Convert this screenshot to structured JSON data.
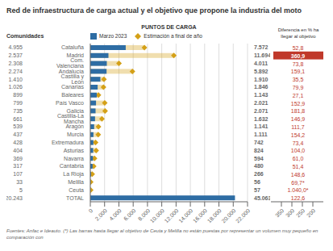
{
  "chart_data": {
    "type": "bar",
    "orientation": "horizontal",
    "title": "Red de infraestructura de carga actual y el objetivo que propone la industria del moto",
    "subtitle": "PUNTOS DE CARGA",
    "y_label": "Comunidades",
    "categories": [
      "Cataluña",
      "Madrid",
      "Com. Valenciana",
      "Andalucía",
      "Castilla y León",
      "Canarias",
      "Baleares",
      "País Vasco",
      "Galicia",
      "Castilla-La Mancha",
      "Aragón",
      "Murcia",
      "Extremadura",
      "Asturias",
      "Navarra",
      "Cantabria",
      "La Rioja",
      "Melilla",
      "Ceuta",
      "TOTAL"
    ],
    "series": [
      {
        "name": "Marzo 2023",
        "color": "#2E6DA4",
        "values": [
          4955,
          2537,
          2308,
          2274,
          1410,
          1026,
          899,
          799,
          735,
          661,
          539,
          437,
          428,
          404,
          369,
          317,
          107,
          33,
          5,
          20243
        ],
        "value_labels": [
          "4.955",
          "2.537",
          "2.308",
          "2.274",
          "1.410",
          "1.026",
          "899",
          "799",
          "735",
          "661",
          "539",
          "437",
          "428",
          "404",
          "369",
          "317",
          "107",
          "33",
          "5",
          "20.243"
        ]
      },
      {
        "name": "Estimación a final de año",
        "color": "#D4A017",
        "marker": "diamond",
        "values": [
          7572,
          11694,
          4011,
          5892,
          1910,
          1846,
          1143,
          2021,
          2071,
          1632,
          1141,
          1111,
          742,
          824,
          594,
          480,
          266,
          56,
          57,
          null
        ],
        "value_labels": [
          "7.572",
          "11.694",
          "4.011",
          "5.892",
          "1.910",
          "1.846",
          "1.143",
          "2.021",
          "2.071",
          "1.632",
          "1.141",
          "1.111",
          "742",
          "824",
          "594",
          "480",
          "266",
          "56",
          "57",
          null
        ]
      }
    ],
    "annotations": [
      {
        "category": "TOTAL",
        "text": "45.063"
      }
    ],
    "xlim": [
      0,
      22000
    ],
    "xticks": [
      0,
      {
        "value": 2000,
        "label": "2.000"
      },
      {
        "value": 4000,
        "label": "4.000"
      },
      {
        "value": 6000,
        "label": "6.000"
      },
      {
        "value": 8000,
        "label": "8.000"
      },
      {
        "value": 10000,
        "label": "10.000"
      },
      {
        "value": 12000,
        "label": "12.000"
      },
      {
        "value": 14000,
        "label": "14.000"
      },
      {
        "value": 16000,
        "label": "16.000"
      },
      {
        "value": 18000,
        "label": "18.000"
      },
      {
        "value": 20000,
        "label": "20.000"
      },
      {
        "value": 22000,
        "label": "22.000"
      }
    ],
    "grid": true,
    "legend": "top",
    "data_labels": true,
    "difference_title": [
      "Diferencia en % ha",
      "llegar al objetivo"
    ],
    "difference_labels": [
      "52,8",
      "360,9",
      "73,8",
      "159,1",
      "35,5",
      "79,9",
      "27,1",
      "152,9",
      "181,8",
      "146,9",
      "111,7",
      "154,2",
      "73,4",
      "104,0",
      "61,0",
      "51,4",
      "148,6",
      "69,7*",
      "1.040,0*",
      "122,6"
    ],
    "difference_color": "#C0392B",
    "highlight": "Madrid",
    "highlight_text_color": "#FFFFFF",
    "x2lim": [
      400,
      150
    ],
    "x2ticks": [
      350,
      300,
      250,
      200
    ],
    "footnote": "Fuentes: Anfac e Ideauto. (*) Las barras hasta llegar al objetivo de Ceuta y Melilla no están puestas por representar un volumen muy pequeño en comparación con"
  }
}
